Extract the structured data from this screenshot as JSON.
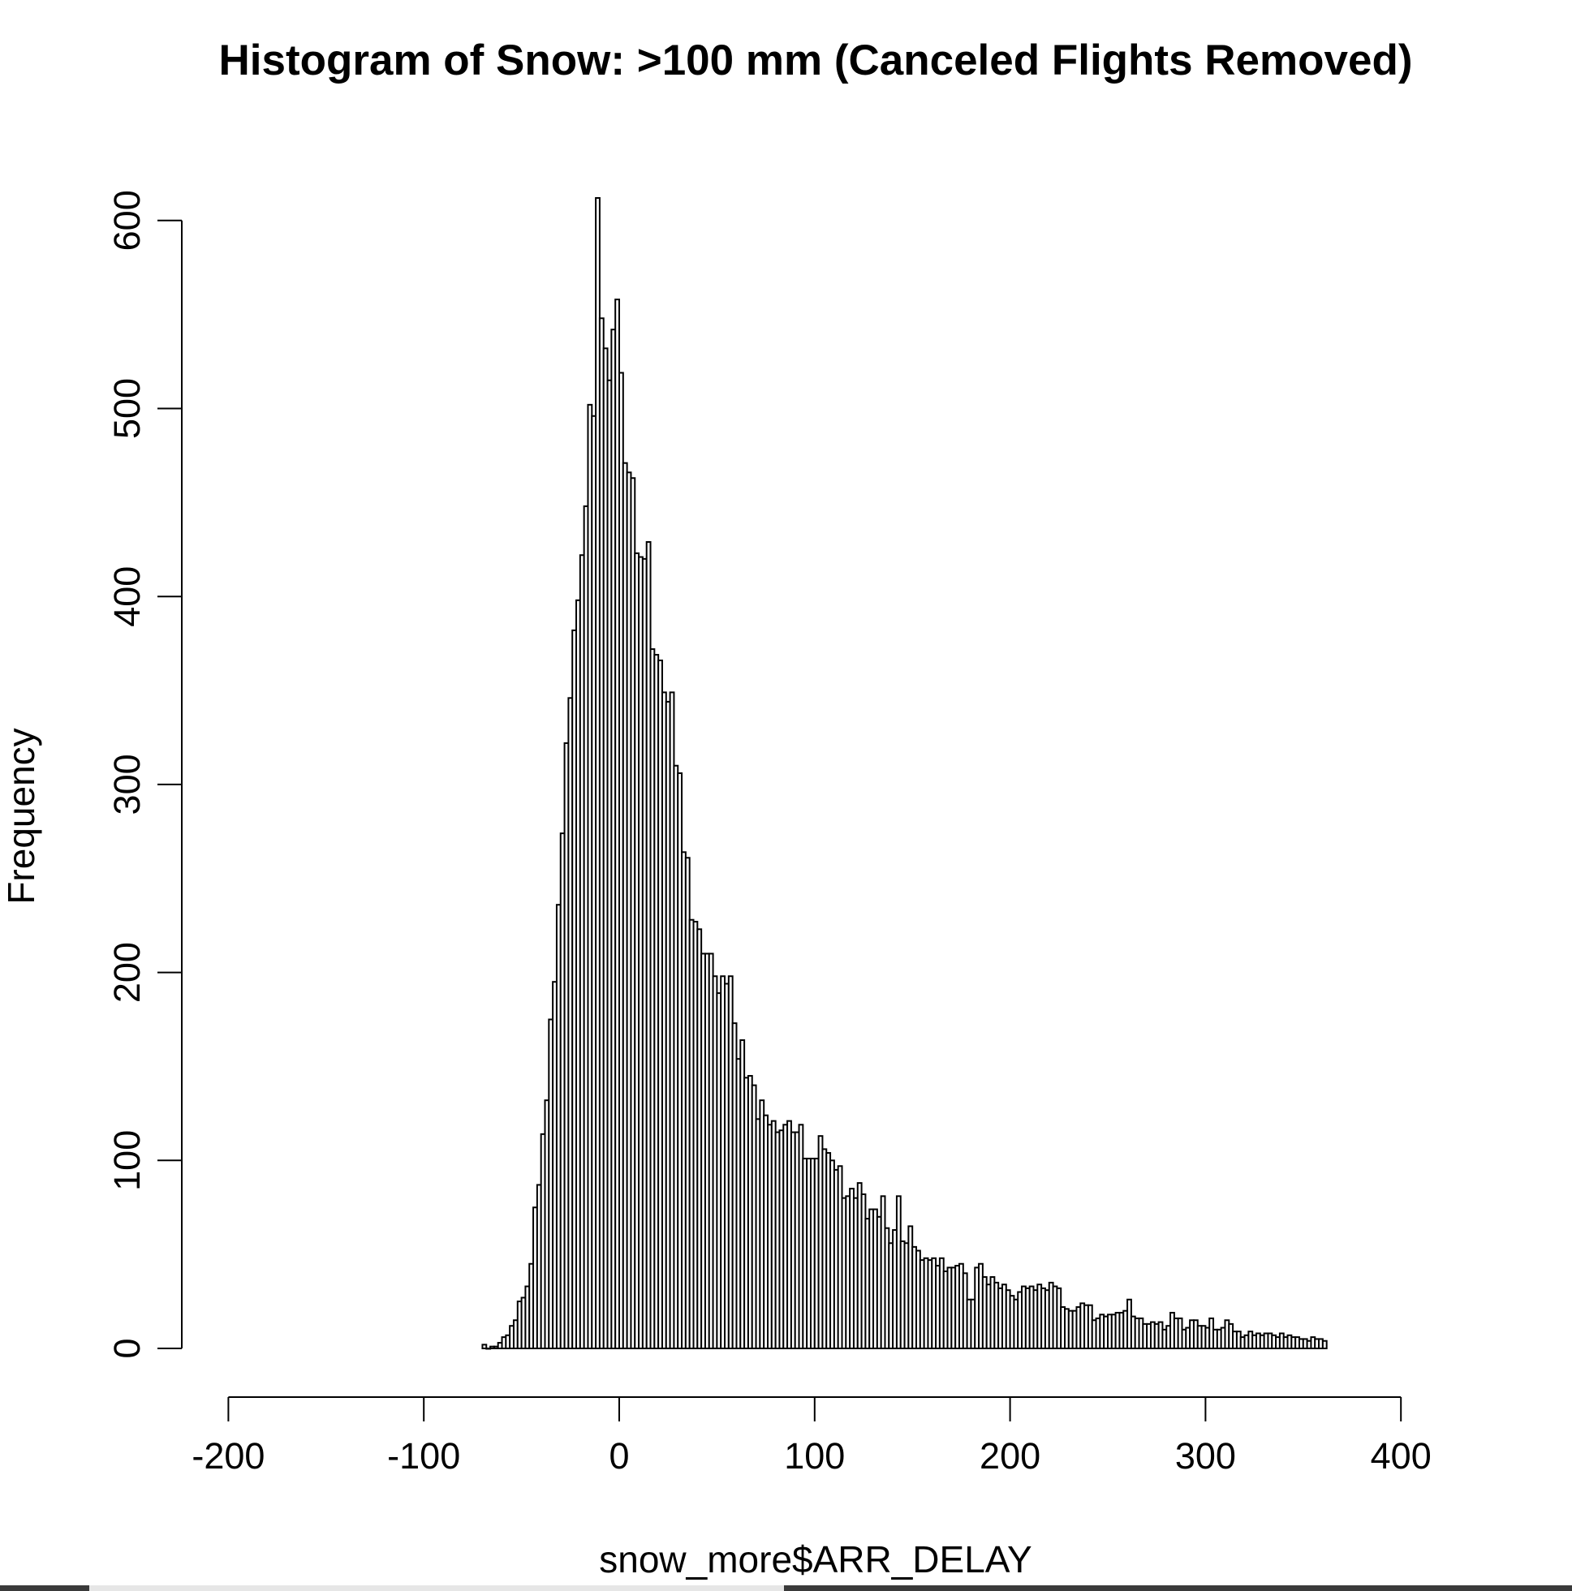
{
  "chart_data": {
    "type": "bar",
    "title": "Histogram of Snow: >100 mm (Canceled Flights Removed)",
    "xlabel": "snow_more$ARR_DELAY",
    "ylabel": "Frequency",
    "xlim": [
      -200,
      424
    ],
    "ylim": [
      0,
      600
    ],
    "x_ticks": [
      "-200",
      "-100",
      "0",
      "100",
      "200",
      "300",
      "400"
    ],
    "y_ticks": [
      "0",
      "100",
      "200",
      "300",
      "400",
      "500",
      "600"
    ],
    "bin_width": 2,
    "bin_start": -70,
    "values": [
      2,
      0,
      1,
      1,
      3,
      6,
      7,
      12,
      15,
      25,
      27,
      33,
      45,
      75,
      87,
      114,
      132,
      175,
      195,
      236,
      274,
      322,
      346,
      382,
      398,
      422,
      448,
      502,
      496,
      612,
      548,
      532,
      515,
      542,
      558,
      519,
      471,
      466,
      463,
      423,
      421,
      420,
      429,
      372,
      369,
      366,
      349,
      344,
      349,
      310,
      306,
      264,
      261,
      228,
      227,
      223,
      210,
      210,
      210,
      198,
      189,
      198,
      194,
      198,
      173,
      154,
      164,
      144,
      145,
      140,
      122,
      132,
      124,
      119,
      121,
      115,
      116,
      119,
      121,
      115,
      115,
      119,
      101,
      101,
      101,
      101,
      113,
      106,
      104,
      100,
      95,
      97,
      80,
      81,
      85,
      80,
      88,
      82,
      69,
      74,
      74,
      70,
      81,
      64,
      56,
      63,
      81,
      57,
      56,
      65,
      54,
      52,
      47,
      48,
      47,
      48,
      44,
      48,
      41,
      43,
      43,
      44,
      45,
      40,
      26,
      26,
      43,
      45,
      38,
      34,
      38,
      35,
      32,
      34,
      31,
      28,
      26,
      30,
      33,
      32,
      33,
      31,
      34,
      32,
      31,
      35,
      33,
      32,
      22,
      21,
      20,
      20,
      22,
      24,
      23,
      23,
      15,
      16,
      18,
      17,
      18,
      18,
      19,
      19,
      20,
      26,
      17,
      16,
      16,
      13,
      13,
      14,
      13,
      14,
      10,
      12,
      19,
      16,
      16,
      10,
      11,
      15,
      15,
      12,
      12,
      11,
      16,
      10,
      10,
      11,
      15,
      13,
      9,
      9,
      6,
      7,
      9,
      7,
      8,
      7,
      8,
      8,
      7,
      6,
      8,
      6,
      7,
      6,
      6,
      5,
      5,
      4,
      6,
      5,
      5,
      4
    ],
    "grid": false,
    "legend": "none"
  }
}
